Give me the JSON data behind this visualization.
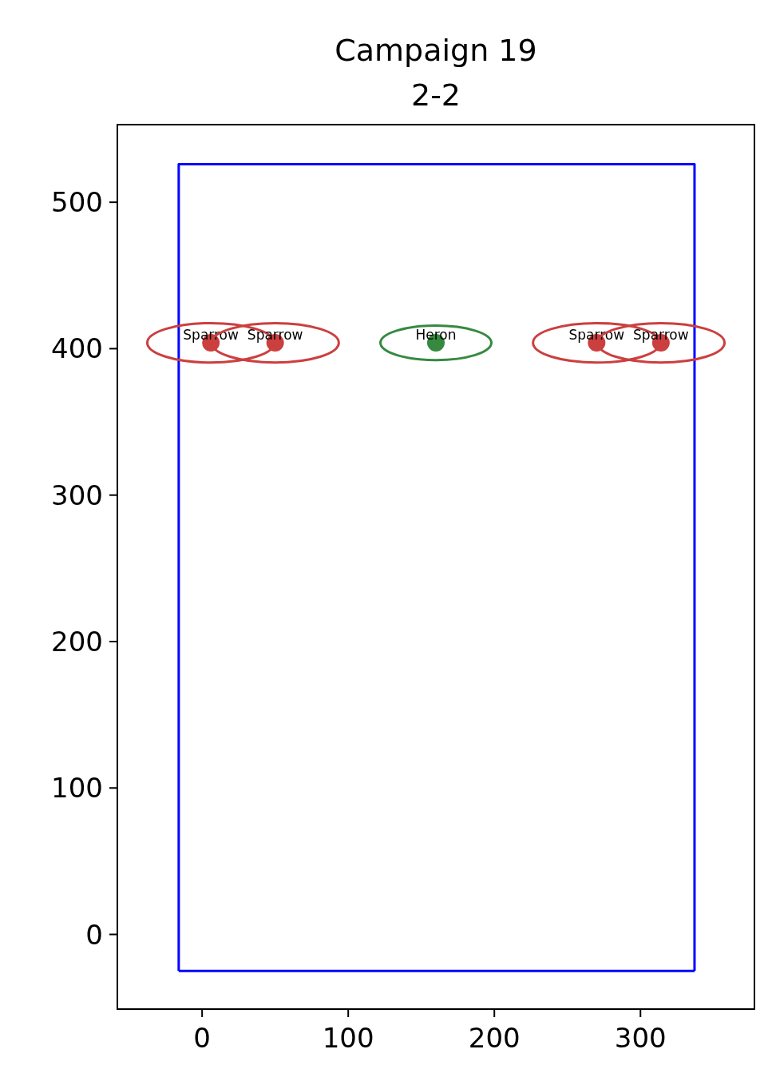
{
  "chart_data": {
    "type": "scatter",
    "title": "Campaign 19\n2-2",
    "xlim": [
      -58,
      378
    ],
    "ylim": [
      -51,
      553
    ],
    "xticks": [
      0,
      100,
      200,
      300
    ],
    "yticks": [
      0,
      100,
      200,
      300,
      400,
      500
    ],
    "grid": false,
    "legend": false,
    "marker": "circle",
    "series": [
      {
        "type": "line",
        "color": "#0000ff",
        "x": [
          -16,
          -16,
          337,
          337
        ],
        "values": [
          -25,
          526,
          526,
          -25
        ],
        "marker": "none"
      },
      {
        "type": "line",
        "color": "#0000ff",
        "x": [
          -16,
          337
        ],
        "values": [
          -25,
          -25
        ],
        "marker": "none"
      },
      {
        "name": "Sparrow",
        "color": "#cc3f3f",
        "x": [
          6,
          50,
          270,
          314
        ],
        "values": [
          404,
          404,
          404,
          404
        ]
      },
      {
        "name": "Heron",
        "color": "#368a40",
        "x": [
          160
        ],
        "values": [
          404
        ]
      }
    ]
  }
}
